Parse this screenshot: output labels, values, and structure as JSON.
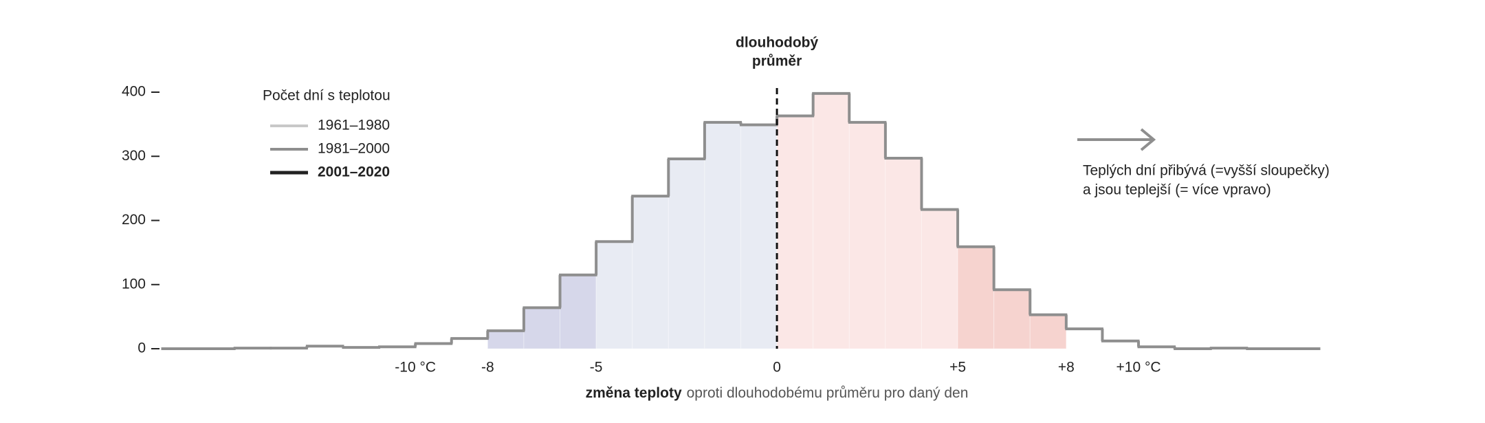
{
  "chart_data": {
    "type": "step-histogram",
    "bins": [
      -17,
      -16,
      -15,
      -14,
      -13,
      -12,
      -11,
      -10,
      -9,
      -8,
      -7,
      -6,
      -5,
      -4,
      -3,
      -2,
      -1,
      0,
      1,
      2,
      3,
      4,
      5,
      6,
      7,
      8,
      9,
      10,
      11,
      12,
      13,
      14,
      15
    ],
    "values": [
      0,
      0,
      1,
      1,
      4,
      2,
      3,
      8,
      16,
      28,
      64,
      115,
      167,
      238,
      296,
      353,
      349,
      363,
      398,
      353,
      297,
      217,
      159,
      92,
      53,
      31,
      12,
      3,
      0,
      1,
      0,
      0
    ],
    "color": "#8e8e8e",
    "shading": [
      {
        "from": -8,
        "to": -5,
        "color": "#d6d7ea"
      },
      {
        "from": -5,
        "to": 0,
        "color": "#e8ebf3"
      },
      {
        "from": 0,
        "to": 5,
        "color": "#fbe7e6"
      },
      {
        "from": 5,
        "to": 8,
        "color": "#f6d3cf"
      }
    ],
    "xlim": [
      -17,
      15
    ],
    "ylim": [
      0,
      400
    ],
    "yticks": [
      0,
      100,
      200,
      300,
      400
    ],
    "xticks": [
      {
        "value": -10,
        "label": "-10 °C"
      },
      {
        "value": -8,
        "label": "-8"
      },
      {
        "value": -5,
        "label": "-5"
      },
      {
        "value": 0,
        "label": "0"
      },
      {
        "value": 5,
        "label": "+5"
      },
      {
        "value": 8,
        "label": "+8"
      },
      {
        "value": 10,
        "label": "+10 °C"
      }
    ],
    "x_label": [
      {
        "text": "změna teploty",
        "bold": true
      },
      {
        "text": "oproti dlouhodobému průměru pro daný den",
        "bold": false
      }
    ],
    "reference_line": {
      "value": 0,
      "label": [
        "dlouhodobý",
        "průměr"
      ]
    },
    "legend": {
      "title": "Počet dní s teplotou",
      "items": [
        {
          "label": "1961–1980",
          "color": "#c8c8c8",
          "bold": false
        },
        {
          "label": "1981–2000",
          "color": "#8e8e8e",
          "bold": false
        },
        {
          "label": "2001–2020",
          "color": "#222222",
          "bold": true
        }
      ]
    },
    "annotation": [
      "Teplých dní přibývá (=vyšší sloupečky)",
      "a jsou teplejší (= více vpravo)"
    ]
  }
}
